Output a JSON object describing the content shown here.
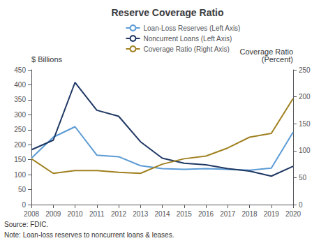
{
  "chart_data": {
    "type": "line",
    "title": "Reserve Coverage Ratio",
    "ylabel": "$ Billions",
    "y2label": "Coverage Ratio\n(Percent)",
    "annotations": [
      "Source: FDIC.",
      "Note: Loan-loss reserves to noncurrent loans & leases."
    ],
    "x": [
      2008,
      2009,
      2010,
      2011,
      2012,
      2013,
      2014,
      2015,
      2016,
      2017,
      2018,
      2019,
      2020
    ],
    "xlim": [
      2008,
      2020
    ],
    "xticks": [
      2008,
      2009,
      2010,
      2011,
      2012,
      2013,
      2014,
      2015,
      2016,
      2017,
      2018,
      2019,
      2020
    ],
    "ylim": [
      0,
      450
    ],
    "yticks": [
      0,
      50,
      100,
      150,
      200,
      250,
      300,
      350,
      400,
      450
    ],
    "y2lim": [
      0,
      250
    ],
    "y2ticks": [
      0,
      50,
      100,
      150,
      200,
      250
    ],
    "grid": false,
    "legend": "upper right",
    "series": [
      {
        "name": "Loan-Loss Reserves (Left Axis)",
        "color": "#5b9bd5",
        "values": [
          155,
          225,
          260,
          165,
          160,
          130,
          120,
          118,
          120,
          118,
          115,
          122,
          242
        ]
      },
      {
        "name": "Noncurrent Loans (Left Axis)",
        "color": "#1f3864",
        "values": [
          183,
          215,
          408,
          315,
          295,
          210,
          155,
          138,
          133,
          120,
          112,
          95,
          128
        ]
      },
      {
        "name": "Coverage Ratio (Right Axis)",
        "color": "#a08020",
        "axis": "y2",
        "values": [
          85,
          58,
          63,
          63,
          60,
          58,
          75,
          85,
          90,
          105,
          125,
          132,
          197
        ]
      }
    ]
  }
}
